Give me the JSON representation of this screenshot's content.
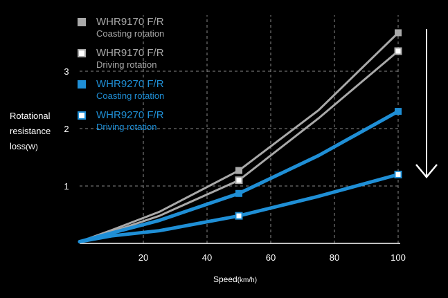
{
  "chart_data": {
    "type": "line",
    "x": [
      0,
      10,
      25,
      50,
      75,
      100
    ],
    "xticks": [
      20,
      40,
      60,
      80,
      100
    ],
    "yticks": [
      1,
      2,
      3
    ],
    "xlim": [
      0,
      100
    ],
    "ylim": [
      0,
      3.7
    ],
    "xlabel": "Speed",
    "xlabel_unit": "(km/h)",
    "ylabel_lines": [
      "Rotational",
      "resistance",
      "loss"
    ],
    "ylabel_unit": "(W)",
    "grid": "dashed",
    "legend_position": "top-left",
    "series": [
      {
        "name": "WHR9170 F/R",
        "label": "Coasting rotation",
        "color": "#a9a9a9",
        "marker": "filled",
        "values": [
          0.03,
          0.23,
          0.55,
          1.27,
          2.32,
          3.67
        ],
        "marker_x": [
          50,
          100
        ]
      },
      {
        "name": "WHR9170 F/R",
        "label": "Driving rotation",
        "color": "#a9a9a9",
        "marker": "hollow",
        "values": [
          0.03,
          0.2,
          0.48,
          1.1,
          2.18,
          3.35
        ],
        "marker_x": [
          50,
          100
        ]
      },
      {
        "name": "WHR9270 F/R",
        "label": "Coasting rotation",
        "color": "#1f8fd6",
        "marker": "filled",
        "values": [
          0.03,
          0.18,
          0.4,
          0.87,
          1.53,
          2.3
        ],
        "marker_x": [
          50,
          100
        ]
      },
      {
        "name": "WHR9270 F/R",
        "label": "Driving rotation",
        "color": "#1f8fd6",
        "marker": "hollow",
        "values": [
          0.03,
          0.13,
          0.22,
          0.48,
          0.82,
          1.2
        ],
        "marker_x": [
          50,
          100
        ]
      }
    ],
    "arrow_direction": "down"
  }
}
